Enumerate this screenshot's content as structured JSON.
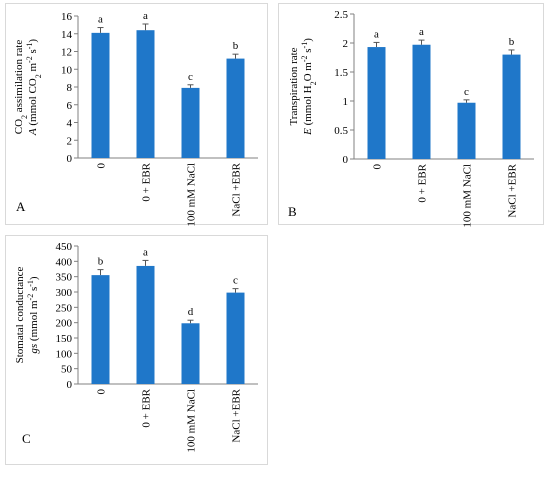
{
  "chart_data": [
    {
      "type": "bar",
      "panel_label": "A",
      "categories": [
        "0",
        "0 + EBR",
        "100 mM NaCl",
        "NaCl +EBR"
      ],
      "values": [
        14.1,
        14.4,
        7.9,
        11.2
      ],
      "errors": [
        0.6,
        0.7,
        0.35,
        0.5
      ],
      "significance_letters": [
        "a",
        "a",
        "c",
        "b"
      ],
      "ylabel_line1": [
        "CO",
        "2",
        " assimilation rate"
      ],
      "ylabel_line2": [
        "A",
        " (mmol CO",
        "2",
        " m",
        "-2",
        " s",
        "-1",
        ")"
      ],
      "ylim": [
        0,
        16
      ],
      "yticks": [
        0,
        2,
        4,
        6,
        8,
        10,
        12,
        14,
        16
      ],
      "bar_color": "#1f77c9"
    },
    {
      "type": "bar",
      "panel_label": "B",
      "categories": [
        "0",
        "0 + EBR",
        "100 mM NaCl",
        "NaCl +EBR"
      ],
      "values": [
        1.93,
        1.97,
        0.97,
        1.8
      ],
      "errors": [
        0.08,
        0.08,
        0.05,
        0.08
      ],
      "significance_letters": [
        "a",
        "a",
        "c",
        "b"
      ],
      "ylabel_line1": [
        "Transpiration rate"
      ],
      "ylabel_line2": [
        "E",
        " (mmol H",
        "2",
        "O m",
        "-2",
        " s",
        "-1",
        ")"
      ],
      "ylim": [
        0,
        2.5
      ],
      "yticks": [
        0,
        0.5,
        1,
        1.5,
        2,
        2.5
      ],
      "ytick_labels": [
        "0",
        "0.5",
        "1",
        "1.5",
        "2",
        "2.5"
      ],
      "bar_color": "#1f77c9"
    },
    {
      "type": "bar",
      "panel_label": "C",
      "categories": [
        "0",
        "0 + EBR",
        "100 mM NaCl",
        "NaCl +EBR"
      ],
      "values": [
        355,
        385,
        198,
        298
      ],
      "errors": [
        18,
        18,
        10,
        13
      ],
      "significance_letters": [
        "b",
        "a",
        "d",
        "c"
      ],
      "ylabel_line1": [
        "Stomatal conductance"
      ],
      "ylabel_line2": [
        "gs",
        " (mmol m",
        "-2",
        " s",
        "-1",
        ")"
      ],
      "ylim": [
        0,
        450
      ],
      "yticks": [
        0,
        50,
        100,
        150,
        200,
        250,
        300,
        350,
        400,
        450
      ],
      "bar_color": "#1f77c9"
    }
  ]
}
